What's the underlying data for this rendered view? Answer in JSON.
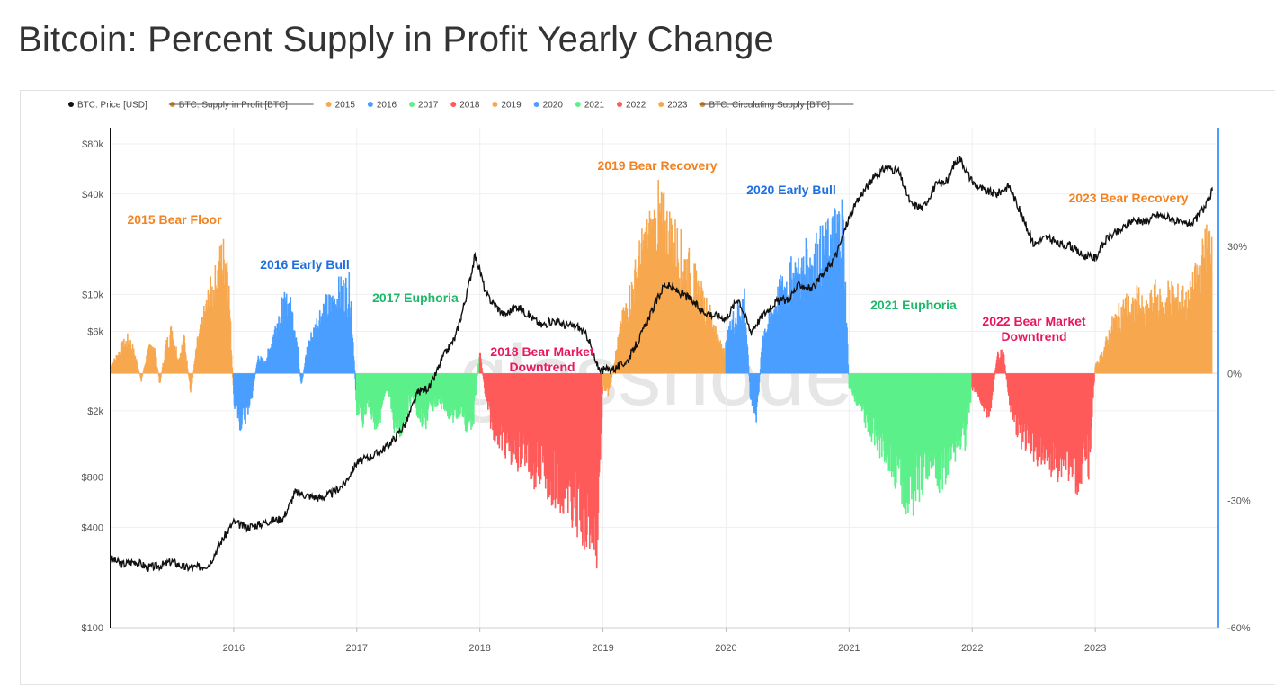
{
  "title": "Bitcoin: Percent Supply in Profit Yearly Change",
  "watermark": "glassnode",
  "colors": {
    "price": "#111111",
    "orange": "#f7a84f",
    "blue": "#4a9eff",
    "green": "#5cf08a",
    "red": "#ff5a5a",
    "supply": "#e08a2e"
  },
  "chart_data": {
    "type": "area",
    "legend": [
      {
        "label": "BTC: Price [USD]",
        "color": "#111111",
        "struck": false
      },
      {
        "label": "BTC: Supply in Profit [BTC]",
        "color": "#e08a2e",
        "struck": true
      },
      {
        "label": "2015",
        "color": "#f7a84f",
        "struck": false
      },
      {
        "label": "2016",
        "color": "#4a9eff",
        "struck": false
      },
      {
        "label": "2017",
        "color": "#5cf08a",
        "struck": false
      },
      {
        "label": "2018",
        "color": "#ff5a5a",
        "struck": false
      },
      {
        "label": "2019",
        "color": "#f7a84f",
        "struck": false
      },
      {
        "label": "2020",
        "color": "#4a9eff",
        "struck": false
      },
      {
        "label": "2021",
        "color": "#5cf08a",
        "struck": false
      },
      {
        "label": "2022",
        "color": "#ff5a5a",
        "struck": false
      },
      {
        "label": "2023",
        "color": "#f7a84f",
        "struck": false
      },
      {
        "label": "BTC: Circulating Supply [BTC]",
        "color": "#e08a2e",
        "struck": true
      }
    ],
    "x_ticks": [
      "2016",
      "2017",
      "2018",
      "2019",
      "2020",
      "2021",
      "2022",
      "2023"
    ],
    "x_range": [
      2015.0,
      2024.0
    ],
    "left_axis": {
      "scale": "log",
      "range": [
        100,
        100000
      ],
      "ticks": [
        {
          "label": "$100",
          "value": 100
        },
        {
          "label": "$400",
          "value": 400
        },
        {
          "label": "$800",
          "value": 800
        },
        {
          "label": "$2k",
          "value": 2000
        },
        {
          "label": "$6k",
          "value": 6000
        },
        {
          "label": "$10k",
          "value": 10000
        },
        {
          "label": "$40k",
          "value": 40000
        },
        {
          "label": "$80k",
          "value": 80000
        }
      ]
    },
    "right_axis": {
      "scale": "linear",
      "range": [
        -60,
        58
      ],
      "ticks": [
        {
          "label": "30%",
          "value": 30
        },
        {
          "label": "0%",
          "value": 0
        },
        {
          "label": "-30%",
          "value": -30
        },
        {
          "label": "-60%",
          "value": -60
        }
      ]
    },
    "price_series": {
      "name": "BTC: Price [USD]",
      "x": [
        2015.0,
        2015.1,
        2015.2,
        2015.3,
        2015.4,
        2015.5,
        2015.6,
        2015.7,
        2015.8,
        2015.9,
        2016.0,
        2016.1,
        2016.2,
        2016.3,
        2016.4,
        2016.5,
        2016.6,
        2016.7,
        2016.8,
        2016.9,
        2017.0,
        2017.1,
        2017.2,
        2017.3,
        2017.4,
        2017.5,
        2017.6,
        2017.7,
        2017.8,
        2017.85,
        2017.9,
        2017.96,
        2018.0,
        2018.05,
        2018.1,
        2018.2,
        2018.3,
        2018.4,
        2018.5,
        2018.6,
        2018.7,
        2018.8,
        2018.88,
        2018.95,
        2019.0,
        2019.1,
        2019.2,
        2019.3,
        2019.4,
        2019.5,
        2019.6,
        2019.7,
        2019.8,
        2019.9,
        2020.0,
        2020.1,
        2020.2,
        2020.3,
        2020.4,
        2020.5,
        2020.6,
        2020.7,
        2020.8,
        2020.9,
        2021.0,
        2021.1,
        2021.2,
        2021.3,
        2021.4,
        2021.5,
        2021.6,
        2021.7,
        2021.8,
        2021.85,
        2021.9,
        2022.0,
        2022.1,
        2022.2,
        2022.3,
        2022.4,
        2022.5,
        2022.6,
        2022.7,
        2022.8,
        2022.9,
        2023.0,
        2023.1,
        2023.2,
        2023.3,
        2023.4,
        2023.5,
        2023.6,
        2023.7,
        2023.8,
        2023.9,
        2023.95
      ],
      "y": [
        260,
        240,
        250,
        230,
        235,
        250,
        230,
        230,
        240,
        330,
        430,
        400,
        415,
        440,
        450,
        650,
        620,
        600,
        640,
        730,
        980,
        1050,
        1150,
        1350,
        1700,
        2600,
        2800,
        4200,
        5500,
        7500,
        10500,
        17000,
        14000,
        10000,
        9000,
        7500,
        8500,
        7500,
        6500,
        7000,
        6500,
        6400,
        5500,
        3700,
        3500,
        3600,
        4000,
        5500,
        8000,
        11500,
        10500,
        9500,
        8000,
        7500,
        7200,
        9500,
        6000,
        7500,
        9000,
        9300,
        11500,
        10700,
        13500,
        17500,
        29000,
        40000,
        50000,
        58000,
        55000,
        35000,
        33000,
        45000,
        48000,
        60000,
        66000,
        47000,
        42000,
        40000,
        45000,
        30000,
        20000,
        22000,
        20000,
        19500,
        17000,
        16500,
        22000,
        24000,
        28000,
        27000,
        30000,
        29000,
        26500,
        27000,
        34000,
        42000
      ]
    },
    "change_series": {
      "x": [
        2015.0,
        2015.05,
        2015.1,
        2015.15,
        2015.2,
        2015.25,
        2015.3,
        2015.35,
        2015.4,
        2015.45,
        2015.5,
        2015.55,
        2015.6,
        2015.65,
        2015.7,
        2015.75,
        2015.8,
        2015.85,
        2015.9,
        2015.95,
        2016.0,
        2016.05,
        2016.1,
        2016.15,
        2016.2,
        2016.25,
        2016.3,
        2016.35,
        2016.4,
        2016.45,
        2016.5,
        2016.55,
        2016.6,
        2016.65,
        2016.7,
        2016.75,
        2016.8,
        2016.85,
        2016.9,
        2016.95,
        2017.0,
        2017.05,
        2017.1,
        2017.15,
        2017.2,
        2017.25,
        2017.3,
        2017.35,
        2017.4,
        2017.45,
        2017.5,
        2017.55,
        2017.6,
        2017.65,
        2017.7,
        2017.75,
        2017.8,
        2017.85,
        2017.9,
        2017.95,
        2018.0,
        2018.05,
        2018.1,
        2018.15,
        2018.2,
        2018.25,
        2018.3,
        2018.35,
        2018.4,
        2018.45,
        2018.5,
        2018.55,
        2018.6,
        2018.65,
        2018.7,
        2018.75,
        2018.8,
        2018.85,
        2018.9,
        2018.95,
        2019.0,
        2019.05,
        2019.1,
        2019.15,
        2019.2,
        2019.25,
        2019.3,
        2019.35,
        2019.4,
        2019.45,
        2019.5,
        2019.55,
        2019.6,
        2019.65,
        2019.7,
        2019.75,
        2019.8,
        2019.85,
        2019.9,
        2019.95,
        2020.0,
        2020.05,
        2020.1,
        2020.15,
        2020.2,
        2020.25,
        2020.3,
        2020.35,
        2020.4,
        2020.45,
        2020.5,
        2020.55,
        2020.6,
        2020.65,
        2020.7,
        2020.75,
        2020.8,
        2020.85,
        2020.9,
        2020.95,
        2021.0,
        2021.05,
        2021.1,
        2021.15,
        2021.2,
        2021.25,
        2021.3,
        2021.35,
        2021.4,
        2021.45,
        2021.5,
        2021.55,
        2021.6,
        2021.65,
        2021.7,
        2021.75,
        2021.8,
        2021.85,
        2021.9,
        2021.95,
        2022.0,
        2022.05,
        2022.1,
        2022.15,
        2022.2,
        2022.25,
        2022.3,
        2022.35,
        2022.4,
        2022.45,
        2022.5,
        2022.55,
        2022.6,
        2022.65,
        2022.7,
        2022.75,
        2022.8,
        2022.85,
        2022.9,
        2022.95,
        2023.0,
        2023.05,
        2023.1,
        2023.15,
        2023.2,
        2023.25,
        2023.3,
        2023.35,
        2023.4,
        2023.45,
        2023.5,
        2023.55,
        2023.6,
        2023.65,
        2023.7,
        2023.75,
        2023.8,
        2023.85,
        2023.9,
        2023.95
      ],
      "y": [
        2,
        5,
        8,
        10,
        5,
        -2,
        6,
        9,
        -3,
        8,
        13,
        4,
        10,
        -6,
        8,
        15,
        22,
        26,
        33,
        34,
        -8,
        -14,
        -12,
        -6,
        5,
        3,
        8,
        15,
        19,
        20,
        14,
        -4,
        8,
        12,
        17,
        19,
        20,
        23,
        24,
        24,
        -10,
        -13,
        -8,
        -15,
        -11,
        -5,
        -14,
        -18,
        -11,
        -6,
        -12,
        -15,
        -10,
        -8,
        -9,
        -11,
        -13,
        -10,
        -16,
        -12,
        7,
        -8,
        -15,
        -18,
        -20,
        -22,
        -24,
        -22,
        -25,
        -28,
        -26,
        -30,
        -32,
        -35,
        -33,
        -38,
        -40,
        -42,
        -44,
        -48,
        -4,
        -6,
        5,
        14,
        20,
        26,
        33,
        38,
        41,
        46,
        43,
        40,
        37,
        33,
        30,
        26,
        22,
        18,
        15,
        8,
        8,
        15,
        18,
        22,
        -8,
        -13,
        12,
        15,
        20,
        24,
        26,
        29,
        28,
        32,
        33,
        35,
        36,
        38,
        42,
        44,
        -4,
        -7,
        -10,
        -15,
        -18,
        -20,
        -22,
        -26,
        -30,
        -33,
        -35,
        -32,
        -30,
        -25,
        -26,
        -30,
        -28,
        -22,
        -18,
        -20,
        -4,
        -6,
        -10,
        -12,
        5,
        7,
        -8,
        -14,
        -18,
        -20,
        -21,
        -24,
        -23,
        -25,
        -26,
        -24,
        -27,
        -29,
        -27,
        -25,
        2,
        5,
        10,
        15,
        17,
        20,
        18,
        22,
        16,
        20,
        23,
        18,
        24,
        21,
        22,
        20,
        25,
        30,
        36,
        40
      ]
    },
    "annotations": [
      {
        "text": "2015 Bear Floor",
        "color": "#f58220"
      },
      {
        "text": "2016 Early Bull",
        "color": "#1e6fe0"
      },
      {
        "text": "2017 Euphoria",
        "color": "#1eb86a"
      },
      {
        "text": "2018 Bear Market",
        "color": "#e8185d"
      },
      {
        "text": "Downtrend",
        "color": "#e8185d"
      },
      {
        "text": "2019 Bear Recovery",
        "color": "#f58220"
      },
      {
        "text": "2020 Early Bull",
        "color": "#1e6fe0"
      },
      {
        "text": "2021 Euphoria",
        "color": "#1eb86a"
      },
      {
        "text": "2022 Bear Market",
        "color": "#e8185d"
      },
      {
        "text": "Downtrend",
        "color": "#e8185d"
      },
      {
        "text": "2023 Bear Recovery",
        "color": "#f58220"
      }
    ]
  }
}
